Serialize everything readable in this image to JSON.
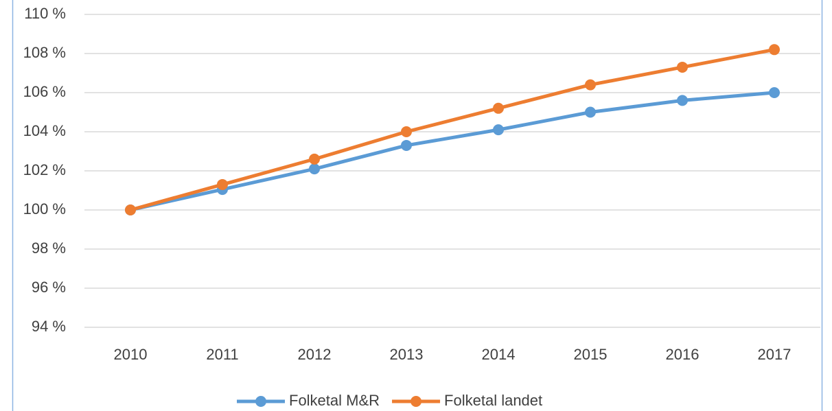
{
  "chart_data": {
    "type": "line",
    "categories": [
      "2010",
      "2011",
      "2012",
      "2013",
      "2014",
      "2015",
      "2016",
      "2017"
    ],
    "series": [
      {
        "name": "Folketal M&R",
        "color": "#5b9bd5",
        "values": [
          100,
          101.05,
          102.1,
          103.3,
          104.1,
          105.0,
          105.6,
          106.0
        ]
      },
      {
        "name": "Folketal landet",
        "color": "#ed7d31",
        "values": [
          100,
          101.3,
          102.6,
          104.0,
          105.2,
          106.4,
          107.3,
          108.2
        ]
      }
    ],
    "ylim": [
      94,
      110
    ],
    "yticks": [
      {
        "value": 94,
        "label": "94 %"
      },
      {
        "value": 96,
        "label": "96 %"
      },
      {
        "value": 98,
        "label": "98 %"
      },
      {
        "value": 100,
        "label": "100 %"
      },
      {
        "value": 102,
        "label": "102 %"
      },
      {
        "value": 104,
        "label": "104 %"
      },
      {
        "value": 106,
        "label": "106 %"
      },
      {
        "value": 108,
        "label": "108 %"
      },
      {
        "value": 110,
        "label": "110 %"
      }
    ],
    "grid": true,
    "legend": "bottom"
  }
}
